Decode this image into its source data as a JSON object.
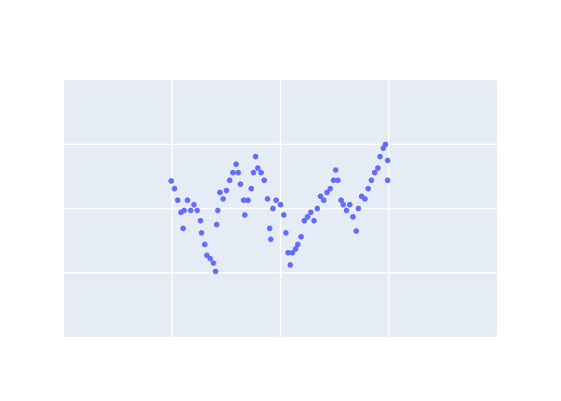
{
  "chart_data": {
    "type": "scatter",
    "x": [
      -0.01,
      0.02,
      0.05,
      0.08,
      0.1,
      0.11,
      0.14,
      0.17,
      0.2,
      0.23,
      0.26,
      0.27,
      0.3,
      0.32,
      0.35,
      0.38,
      0.4,
      0.41,
      0.42,
      0.44,
      0.47,
      0.5,
      0.53,
      0.56,
      0.59,
      0.61,
      0.63,
      0.66,
      0.67,
      0.7,
      0.73,
      0.75,
      0.77,
      0.79,
      0.82,
      0.85,
      0.88,
      0.9,
      0.91,
      0.93,
      0.96,
      1.0,
      1.03,
      1.05,
      1.07,
      1.09,
      1.11,
      1.14,
      1.16,
      1.19,
      1.22,
      1.25,
      1.28,
      1.31,
      1.34,
      1.37,
      1.4,
      1.43,
      1.46,
      1.49,
      1.51,
      1.53,
      1.56,
      1.58,
      1.61,
      1.64,
      1.67,
      1.7,
      1.72,
      1.75,
      1.78,
      1.81,
      1.84,
      1.87,
      1.9,
      1.92,
      1.95,
      1.97,
      1.99,
      1.99
    ],
    "series": [
      {
        "color": "#636efa",
        "values": [
          0.43,
          0.31,
          0.13,
          -0.06,
          -0.31,
          -0.03,
          0.13,
          -0.03,
          0.06,
          -0.03,
          -0.19,
          -0.38,
          -0.56,
          -0.73,
          -0.78,
          -0.85,
          -0.98,
          -0.25,
          -0.03,
          0.25,
          0.15,
          0.28,
          0.44,
          0.56,
          0.69,
          0.56,
          0.38,
          0.13,
          -0.1,
          0.13,
          0.31,
          0.56,
          0.81,
          0.63,
          0.56,
          0.44,
          0.15,
          -0.31,
          -0.48,
          0,
          0.13,
          0.06,
          -0.1,
          -0.38,
          -0.69,
          -0.88,
          -0.69,
          -0.63,
          -0.56,
          -0.44,
          -0.19,
          -0.13,
          -0.06,
          -0.19,
          0,
          0.19,
          0.13,
          0.25,
          0.31,
          0.44,
          0.6,
          0.44,
          0.13,
          0.06,
          -0.03,
          0.06,
          -0.13,
          -0.35,
          0,
          0.19,
          0.15,
          0.31,
          0.44,
          0.56,
          0.63,
          0.81,
          0.94,
          1.0,
          0.75,
          0.44
        ]
      }
    ],
    "xlim": [
      -1,
      3
    ],
    "xticks": [
      0,
      1,
      2
    ],
    "ylim": [
      -2,
      2
    ],
    "yticks": [
      -1,
      0,
      1
    ],
    "grid": true
  }
}
